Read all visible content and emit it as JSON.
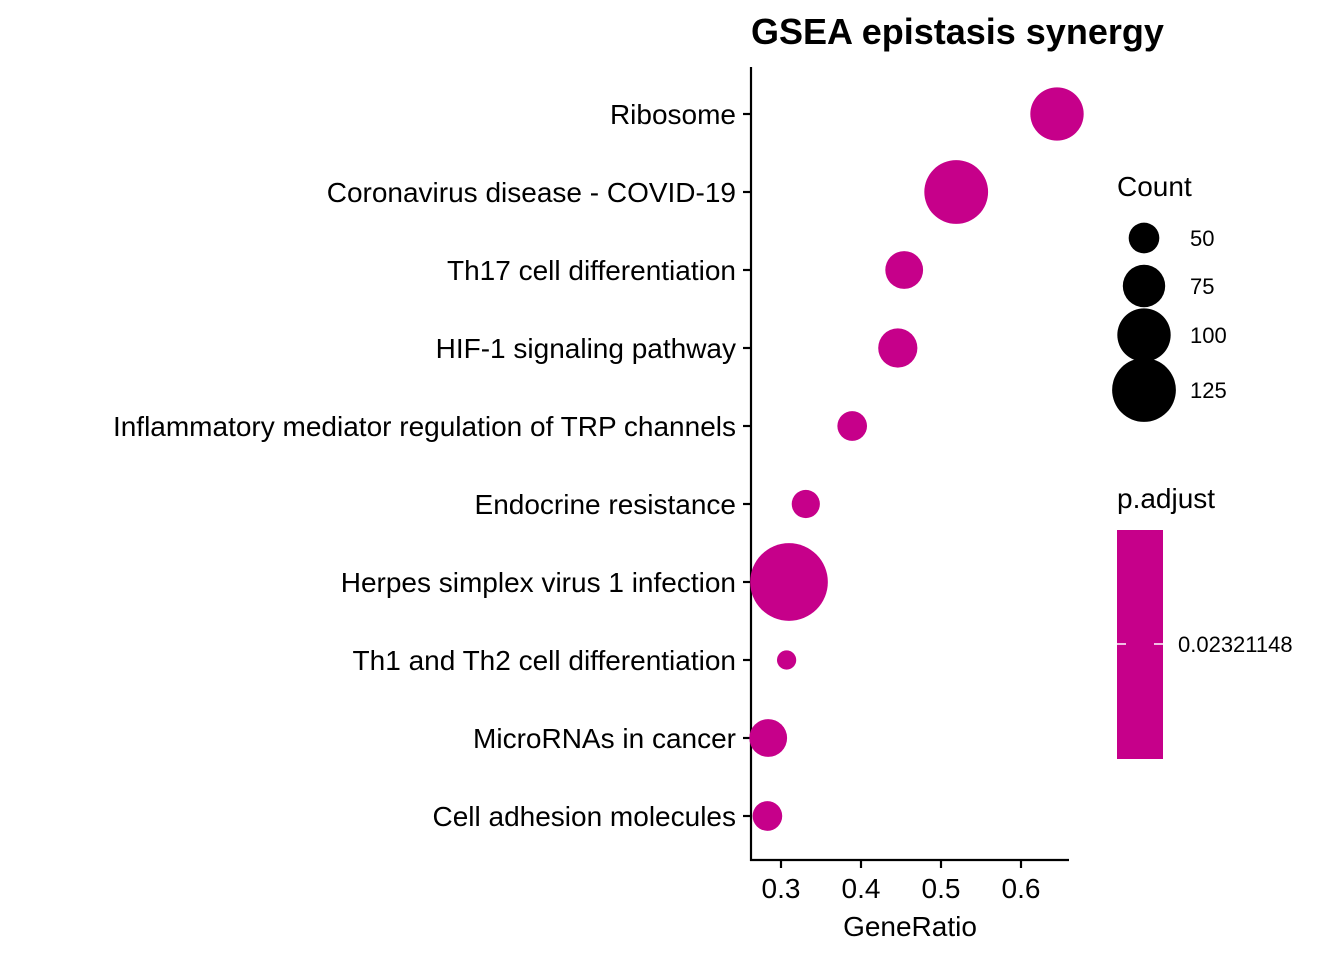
{
  "chart_data": {
    "type": "scatter",
    "title": "GSEA epistasis synergy",
    "xlabel": "GeneRatio",
    "ylabel": "",
    "xlim": [
      0.265,
      0.66
    ],
    "xticks": [
      0.3,
      0.4,
      0.5,
      0.6
    ],
    "xtick_labels": [
      "0.3",
      "0.4",
      "0.5",
      "0.6"
    ],
    "grid": false,
    "point_color": "#C6008A",
    "categories": [
      "Ribosome",
      "Coronavirus disease - COVID-19",
      "Th17 cell differentiation",
      "HIF-1 signaling pathway",
      "Inflammatory mediator regulation of TRP channels",
      "Endocrine resistance",
      "Herpes simplex virus 1 infection",
      "Th1 and Th2 cell differentiation",
      "MicroRNAs in cancer",
      "Cell adhesion molecules"
    ],
    "points": [
      {
        "pathway": "Ribosome",
        "gene_ratio": 0.645,
        "count": 100
      },
      {
        "pathway": "Coronavirus disease - COVID-19",
        "gene_ratio": 0.519,
        "count": 125
      },
      {
        "pathway": "Th17 cell differentiation",
        "gene_ratio": 0.454,
        "count": 65
      },
      {
        "pathway": "HIF-1 signaling pathway",
        "gene_ratio": 0.446,
        "count": 68
      },
      {
        "pathway": "Inflammatory mediator regulation of TRP channels",
        "gene_ratio": 0.389,
        "count": 48
      },
      {
        "pathway": "Endocrine resistance",
        "gene_ratio": 0.331,
        "count": 45
      },
      {
        "pathway": "Herpes simplex virus 1 infection",
        "gene_ratio": 0.31,
        "count": 160
      },
      {
        "pathway": "Th1 and Th2 cell differentiation",
        "gene_ratio": 0.307,
        "count": 28
      },
      {
        "pathway": "MicroRNAs in cancer",
        "gene_ratio": 0.284,
        "count": 65
      },
      {
        "pathway": "Cell adhesion molecules",
        "gene_ratio": 0.283,
        "count": 48
      }
    ],
    "legend_size": {
      "title": "Count",
      "placement": "right",
      "breaks": [
        50,
        75,
        100,
        125
      ],
      "labels": [
        "50",
        "75",
        "100",
        "125"
      ],
      "color": "#000000"
    },
    "legend_color": {
      "title": "p.adjust",
      "placement": "right",
      "labels": [
        "0.02321148"
      ],
      "color": "#C6008A"
    }
  }
}
